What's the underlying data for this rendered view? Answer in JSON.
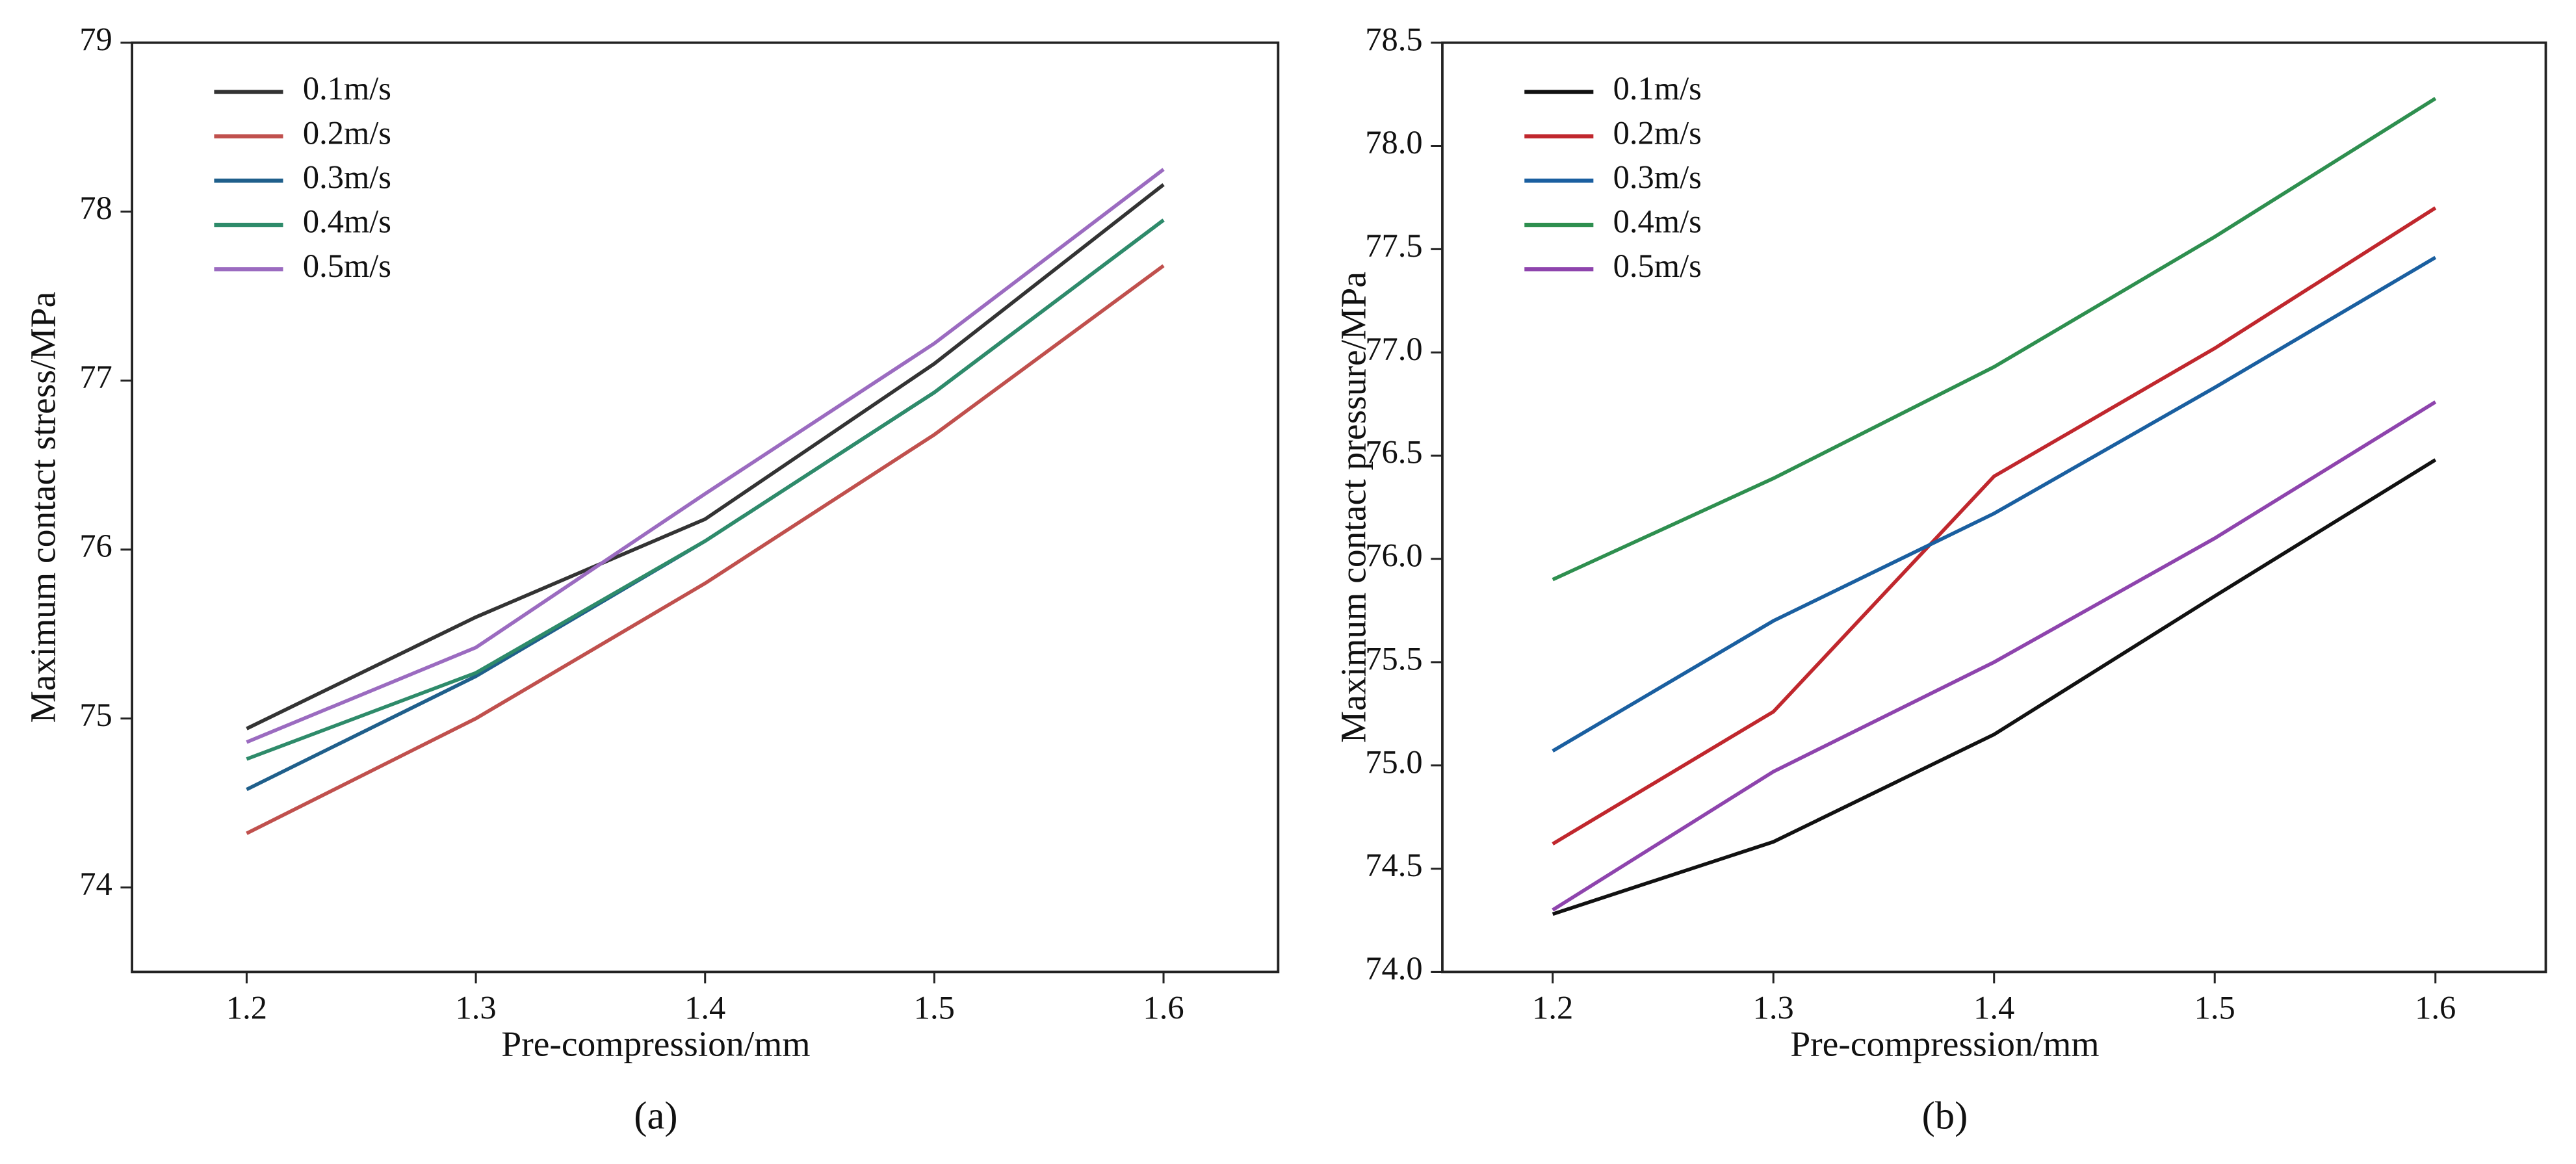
{
  "chart_data": [
    {
      "type": "line",
      "caption": "(a)",
      "xlabel": "Pre-compression/mm",
      "ylabel": "Maximum contact stress/MPa",
      "x": [
        1.2,
        1.3,
        1.4,
        1.5,
        1.6
      ],
      "xlim": [
        1.15,
        1.65
      ],
      "xticks": [
        1.2,
        1.3,
        1.4,
        1.5,
        1.6
      ],
      "ylim": [
        73.5,
        79
      ],
      "yticks": [
        74,
        75,
        76,
        77,
        78,
        79
      ],
      "legend": "upper left",
      "series": [
        {
          "name": "0.1m/s",
          "color": "#333333",
          "values": [
            74.94,
            75.6,
            76.18,
            77.1,
            78.16
          ]
        },
        {
          "name": "0.2m/s",
          "color": "#c0504d",
          "values": [
            74.32,
            75.0,
            75.8,
            76.68,
            77.68
          ]
        },
        {
          "name": "0.3m/s",
          "color": "#1f5f8b",
          "values": [
            74.58,
            75.25,
            76.05,
            76.93,
            77.95
          ]
        },
        {
          "name": "0.4m/s",
          "color": "#2e8b6a",
          "values": [
            74.76,
            75.27,
            76.05,
            76.93,
            77.95
          ]
        },
        {
          "name": "0.5m/s",
          "color": "#9b6bc0",
          "values": [
            74.86,
            75.42,
            76.33,
            77.22,
            78.25
          ]
        }
      ]
    },
    {
      "type": "line",
      "caption": "(b)",
      "xlabel": "Pre-compression/mm",
      "ylabel": "Maximum contact pressure/MPa",
      "x": [
        1.2,
        1.3,
        1.4,
        1.5,
        1.6
      ],
      "xlim": [
        1.15,
        1.65
      ],
      "xticks": [
        1.2,
        1.3,
        1.4,
        1.5,
        1.6
      ],
      "ylim": [
        74,
        78.5
      ],
      "yticks": [
        {
          "value": 74,
          "label": "74.0"
        },
        74.5,
        {
          "value": 75,
          "label": "75.0"
        },
        75.5,
        {
          "value": 76,
          "label": "76.0"
        },
        76.5,
        {
          "value": 77,
          "label": "77.0"
        },
        77.5,
        {
          "value": 78,
          "label": "78.0"
        },
        78.5
      ],
      "legend": "upper left",
      "series": [
        {
          "name": "0.1m/s",
          "color": "#111111",
          "values": [
            74.28,
            74.63,
            75.15,
            75.82,
            76.48
          ]
        },
        {
          "name": "0.2m/s",
          "color": "#c0272d",
          "values": [
            74.62,
            75.26,
            76.4,
            77.02,
            77.7
          ]
        },
        {
          "name": "0.3m/s",
          "color": "#1a5fa0",
          "values": [
            75.07,
            75.7,
            76.22,
            76.83,
            77.46
          ]
        },
        {
          "name": "0.4m/s",
          "color": "#2e8f4f",
          "values": [
            75.9,
            76.39,
            76.93,
            77.56,
            78.23
          ]
        },
        {
          "name": "0.5m/s",
          "color": "#8e44ad",
          "values": [
            74.3,
            74.97,
            75.5,
            76.1,
            76.76
          ]
        }
      ]
    }
  ]
}
